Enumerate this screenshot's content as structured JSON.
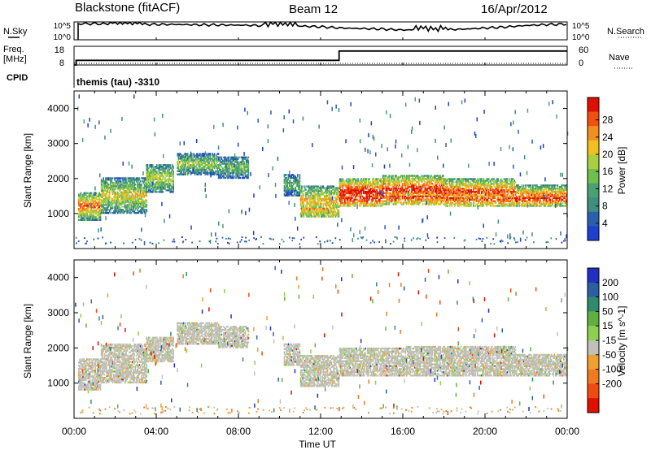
{
  "header": {
    "station": "Blackstone (fitACF)",
    "beam": "Beam 12",
    "date": "16/Apr/2012"
  },
  "panel_labels": {
    "nsky": "N.Sky",
    "nsearch": "N.Search",
    "freq_line1": "Freq.",
    "freq_line2": "[MHz]",
    "nave": "Nave",
    "cpid": "CPID",
    "cpid_value": "themis (tau) -3310"
  },
  "colors": {
    "power_scale": [
      "#1f3fd0",
      "#2a5fb0",
      "#3f8f7f",
      "#4aa070",
      "#6fbf4f",
      "#a8cf3f",
      "#f0c020",
      "#f09020",
      "#f05010",
      "#e01000"
    ],
    "velocity_scale": [
      "#2030c0",
      "#2a60a0",
      "#2f8a6f",
      "#5fb040",
      "#8fcf4f",
      "#c0c0b8",
      "#f0a030",
      "#f07a20",
      "#f04a10",
      "#e01000"
    ]
  },
  "chart_data": [
    {
      "type": "line",
      "name": "nsky-nsearch-panel",
      "ylabel_left": "N.Sky",
      "ylabel_right": "N.Search",
      "y_ticks_left": [
        "10^5",
        "10^0"
      ],
      "y_ticks_right": [
        "10^5",
        "10^0"
      ],
      "xlim_hours": [
        0,
        24
      ],
      "series": [
        {
          "x_hours": [
            0,
            0.3,
            1,
            2,
            3,
            4,
            5,
            6,
            7,
            8,
            9,
            10,
            11,
            12,
            13,
            14,
            15,
            16,
            17,
            17.5,
            18,
            19,
            20,
            21,
            22,
            23,
            24
          ],
          "y_level": [
            0.88,
            0.9,
            0.9,
            0.88,
            0.87,
            0.86,
            0.86,
            0.84,
            0.83,
            0.82,
            0.8,
            0.8,
            0.77,
            0.73,
            0.66,
            0.63,
            0.6,
            0.55,
            0.58,
            0.5,
            0.56,
            0.6,
            0.66,
            0.72,
            0.8,
            0.85,
            0.88
          ]
        }
      ]
    },
    {
      "type": "line",
      "name": "freq-nave-panel",
      "ylabel_left": "Freq. [MHz]",
      "ylabel_right": "Nave",
      "y_ticks_left": [
        "18",
        "8"
      ],
      "y_ticks_right": [
        "60",
        "0"
      ],
      "freq_mhz": {
        "x_hours": [
          0,
          0.1,
          0.1,
          12.9,
          12.9,
          24
        ],
        "y": [
          8,
          8,
          10.5,
          10.5,
          15.5,
          15.5
        ]
      },
      "nave": {
        "x_hours": [
          0,
          24
        ],
        "y": [
          0,
          0
        ]
      },
      "nave_ylim": [
        0,
        60
      ],
      "freq_ylim": [
        8,
        18
      ]
    },
    {
      "type": "heatmap",
      "name": "power-panel",
      "ylabel": "Slant Range [km]",
      "ylim": [
        0,
        4500
      ],
      "y_ticks": [
        1000,
        2000,
        3000,
        4000
      ],
      "x_ticks": [
        "00:00",
        "04:00",
        "08:00",
        "12:00",
        "16:00",
        "20:00",
        "00:00"
      ],
      "xlim_hours": [
        0,
        24
      ],
      "colorbar_label": "Power [dB]",
      "colorbar_ticks": [
        4,
        8,
        12,
        16,
        20,
        24,
        28
      ],
      "colorbar_range": [
        0,
        30
      ],
      "echo_bands": [
        {
          "x_start": 0.2,
          "x_end": 1.3,
          "y_low": 800,
          "y_high": 1600,
          "level": 0.65
        },
        {
          "x_start": 1.3,
          "x_end": 3.5,
          "y_low": 1000,
          "y_high": 2000,
          "level": 0.5
        },
        {
          "x_start": 3.5,
          "x_end": 4.8,
          "y_low": 1600,
          "y_high": 2400,
          "level": 0.45
        },
        {
          "x_start": 5,
          "x_end": 7,
          "y_low": 2100,
          "y_high": 2700,
          "level": 0.4
        },
        {
          "x_start": 7,
          "x_end": 8.5,
          "y_low": 2000,
          "y_high": 2600,
          "level": 0.35
        },
        {
          "x_start": 10.2,
          "x_end": 11,
          "y_low": 1500,
          "y_high": 2100,
          "level": 0.3
        },
        {
          "x_start": 11,
          "x_end": 12.9,
          "y_low": 900,
          "y_high": 1800,
          "level": 0.55
        },
        {
          "x_start": 12.9,
          "x_end": 15,
          "y_low": 1200,
          "y_high": 2000,
          "level": 0.8
        },
        {
          "x_start": 15,
          "x_end": 18,
          "y_low": 1250,
          "y_high": 2100,
          "level": 0.75
        },
        {
          "x_start": 18,
          "x_end": 21.5,
          "y_low": 1200,
          "y_high": 2000,
          "level": 0.7
        },
        {
          "x_start": 21.5,
          "x_end": 24,
          "y_low": 1200,
          "y_high": 1800,
          "level": 0.65
        }
      ]
    },
    {
      "type": "heatmap",
      "name": "velocity-panel",
      "ylabel": "Slant Range [km]",
      "ylim": [
        0,
        4500
      ],
      "y_ticks": [
        1000,
        2000,
        3000,
        4000
      ],
      "x_ticks": [
        "00:00",
        "04:00",
        "08:00",
        "12:00",
        "16:00",
        "20:00",
        "00:00"
      ],
      "xlim_hours": [
        0,
        24
      ],
      "xlabel": "Time UT",
      "colorbar_label": "Velocity [m s^-1]",
      "colorbar_ticks": [
        200,
        100,
        50,
        15,
        -15,
        -50,
        -100,
        -200
      ],
      "echo_bands": [
        {
          "x_start": 0.2,
          "x_end": 1.3,
          "y_low": 800,
          "y_high": 1700
        },
        {
          "x_start": 1.3,
          "x_end": 3.5,
          "y_low": 1000,
          "y_high": 2100
        },
        {
          "x_start": 3.5,
          "x_end": 4.8,
          "y_low": 1600,
          "y_high": 2300
        },
        {
          "x_start": 5,
          "x_end": 7,
          "y_low": 2100,
          "y_high": 2700
        },
        {
          "x_start": 7,
          "x_end": 8.5,
          "y_low": 2000,
          "y_high": 2600
        },
        {
          "x_start": 10.2,
          "x_end": 11,
          "y_low": 1500,
          "y_high": 2100
        },
        {
          "x_start": 11,
          "x_end": 12.9,
          "y_low": 900,
          "y_high": 1800
        },
        {
          "x_start": 12.9,
          "x_end": 16,
          "y_low": 1200,
          "y_high": 2000
        },
        {
          "x_start": 16,
          "x_end": 21.5,
          "y_low": 1200,
          "y_high": 2050
        },
        {
          "x_start": 21.5,
          "x_end": 24,
          "y_low": 1200,
          "y_high": 1800
        }
      ]
    }
  ]
}
